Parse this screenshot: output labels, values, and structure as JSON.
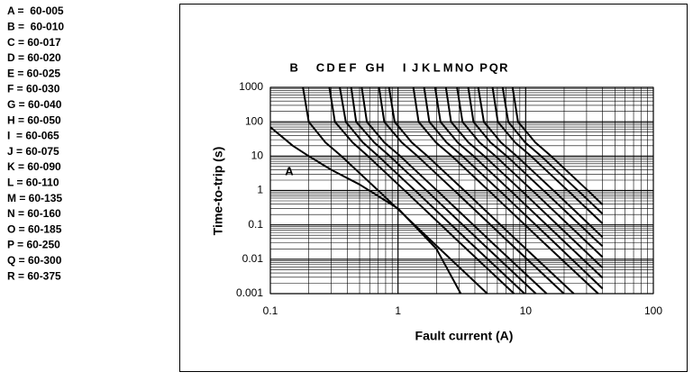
{
  "chart_data": {
    "type": "line",
    "x_label": "Fault current (A)",
    "y_label": "Time-to-trip (s)",
    "xlim": [
      0.1,
      100
    ],
    "xticks": [
      0.1,
      1,
      10,
      100
    ],
    "ylim": [
      0.001,
      1000
    ],
    "yticks": [
      0.001,
      0.01,
      0.1,
      1,
      10,
      100,
      1000
    ],
    "log_x": true,
    "log_y": true,
    "grid": true,
    "minor_grid": true,
    "color": "#000000",
    "legend": [
      "A =  60-005",
      "B =  60-010",
      "C = 60-017",
      "D = 60-020",
      "E = 60-025",
      "F = 60-030",
      "G = 60-040",
      "H = 60-050",
      "I  = 60-065",
      "J = 60-075",
      "K = 60-090",
      "L = 60-110",
      "M = 60-135",
      "N = 60-160",
      "O = 60-185",
      "P = 60-250",
      "Q = 60-300",
      "R = 60-375"
    ],
    "series": [
      {
        "name": "A",
        "x": [
          0.1,
          0.15,
          0.2,
          0.3,
          0.5,
          1,
          2,
          3.1
        ],
        "values": [
          70,
          20,
          10,
          4,
          1.5,
          0.3,
          0.02,
          0.001
        ]
      },
      {
        "name": "B",
        "x": [
          0.18,
          0.2,
          0.27,
          0.36,
          0.72,
          1.8,
          5
        ],
        "values": [
          1000,
          100,
          25,
          10,
          0.9,
          0.036,
          0.001
        ]
      },
      {
        "name": "C",
        "x": [
          0.29,
          0.32,
          0.44,
          0.58,
          1.16,
          2.9,
          8.1
        ],
        "values": [
          1000,
          100,
          25,
          10,
          0.9,
          0.036,
          0.001
        ]
      },
      {
        "name": "D",
        "x": [
          0.35,
          0.39,
          0.53,
          0.7,
          1.4,
          3.5,
          9.8
        ],
        "values": [
          1000,
          100,
          25,
          10,
          0.9,
          0.036,
          0.001
        ]
      },
      {
        "name": "E",
        "x": [
          0.43,
          0.47,
          0.65,
          0.86,
          1.72,
          4.3,
          12
        ],
        "values": [
          1000,
          100,
          25,
          10,
          0.9,
          0.036,
          0.001
        ]
      },
      {
        "name": "F",
        "x": [
          0.52,
          0.57,
          0.78,
          1.04,
          2.08,
          5.2,
          14.6
        ],
        "values": [
          1000,
          100,
          25,
          10,
          0.9,
          0.036,
          0.001
        ]
      },
      {
        "name": "G",
        "x": [
          0.71,
          0.78,
          1.07,
          1.42,
          2.84,
          7.1,
          19.9
        ],
        "values": [
          1000,
          100,
          25,
          10,
          0.9,
          0.036,
          0.001
        ]
      },
      {
        "name": "H",
        "x": [
          0.85,
          0.94,
          1.28,
          1.7,
          3.4,
          8.5,
          23.8
        ],
        "values": [
          1000,
          100,
          25,
          10,
          0.9,
          0.036,
          0.001
        ]
      },
      {
        "name": "I",
        "x": [
          1.32,
          1.45,
          1.98,
          2.64,
          5.28,
          13.2,
          37
        ],
        "values": [
          1000,
          100,
          25,
          10,
          0.9,
          0.036,
          0.001
        ]
      },
      {
        "name": "J",
        "x": [
          1.6,
          1.76,
          2.4,
          3.2,
          6.4,
          16,
          40
        ],
        "values": [
          1000,
          100,
          25,
          10,
          0.9,
          0.036,
          0.0014
        ]
      },
      {
        "name": "K",
        "x": [
          1.95,
          2.15,
          2.93,
          3.9,
          7.8,
          19.5,
          40
        ],
        "values": [
          1000,
          100,
          25,
          10,
          0.9,
          0.036,
          0.0029
        ]
      },
      {
        "name": "L",
        "x": [
          2.37,
          2.6,
          3.56,
          4.74,
          9.5,
          23.7,
          40
        ],
        "values": [
          1000,
          100,
          25,
          10,
          0.9,
          0.036,
          0.0057
        ]
      },
      {
        "name": "M",
        "x": [
          2.9,
          3.2,
          4.35,
          5.8,
          11.6,
          29,
          40
        ],
        "values": [
          1000,
          100,
          25,
          10,
          0.9,
          0.036,
          0.0116
        ]
      },
      {
        "name": "N",
        "x": [
          3.55,
          3.9,
          5.3,
          7.1,
          14.2,
          35.5,
          40
        ],
        "values": [
          1000,
          100,
          25,
          10,
          0.9,
          0.036,
          0.024
        ]
      },
      {
        "name": "O",
        "x": [
          4.25,
          4.7,
          6.4,
          8.5,
          17,
          40
        ],
        "values": [
          1000,
          100,
          25,
          10,
          0.9,
          0.044
        ]
      },
      {
        "name": "P",
        "x": [
          5.5,
          6.05,
          8.25,
          11,
          22,
          40
        ],
        "values": [
          1000,
          100,
          25,
          10,
          0.9,
          0.11
        ]
      },
      {
        "name": "Q",
        "x": [
          6.6,
          7.3,
          9.9,
          13.2,
          26.4,
          40
        ],
        "values": [
          1000,
          100,
          25,
          10,
          0.9,
          0.21
        ]
      },
      {
        "name": "R",
        "x": [
          7.9,
          8.7,
          11.9,
          15.8,
          31.6,
          40
        ],
        "values": [
          1000,
          100,
          25,
          10,
          0.9,
          0.39
        ]
      }
    ]
  }
}
